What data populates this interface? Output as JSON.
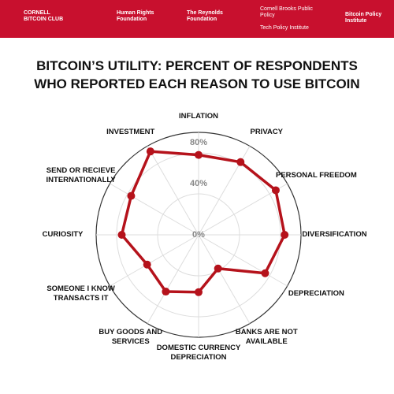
{
  "header": {
    "logos": [
      "CORNELL BITCOIN CLUB",
      "Human Rights Foundation",
      "The Reynolds Foundation",
      "Cornell Brooks Public Policy",
      "Bitcoin Policy Institute"
    ],
    "subtext": "Tech Policy Institute"
  },
  "chart_data": {
    "type": "radar",
    "title": "BITCOIN’S UTILITY: PERCENT OF RESPONDENTS WHO REPORTED EACH REASON TO USE BITCOIN",
    "categories": [
      "INFLATION",
      "PRIVACY",
      "PERSONAL FREEDOM",
      "DIVERSIFICATION",
      "DEPRECIATION",
      "BANKS ARE NOT AVAILABLE",
      "DOMESTIC CURRENCY DEPRECIATION",
      "BUY GOODS AND SERVICES",
      "SOMEONE I KNOW TRANSACTS IT",
      "CURIOSITY",
      "SEND OR RECIEVE INTERNATIONALLY",
      "INVESTMENT"
    ],
    "values": [
      78,
      82,
      87,
      84,
      75,
      38,
      56,
      64,
      58,
      75,
      76,
      94
    ],
    "color": "#b5121b",
    "ylim": [
      0,
      100
    ],
    "yticks": [
      {
        "value": 0,
        "label": "0%"
      },
      {
        "value": 40,
        "label": "40%"
      },
      {
        "value": 80,
        "label": "80%"
      }
    ],
    "grid": true
  }
}
